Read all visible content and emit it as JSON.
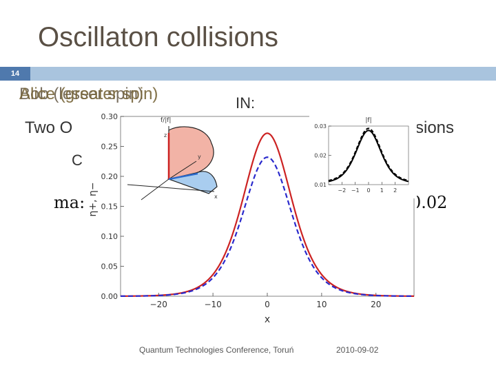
{
  "slide": {
    "title": "Oscillaton collisions",
    "number": "14",
    "bullet_overlap": [
      "Bob (lesser spin)",
      "Alice (greater spin)",
      "Alice (greater spin)"
    ],
    "text_in": "IN:",
    "text_left": "Two O",
    "text_right": "llisions",
    "text_c": "C",
    "text_max": "ma:",
    "text_value": "0.02",
    "footer_left": "Quantum Technologies Conference, Toruń",
    "footer_right": "2010-09-02"
  },
  "chart_data": [
    {
      "type": "line",
      "ylabel": "η+, η−",
      "xlabel": "x",
      "xlim": [
        -27,
        27
      ],
      "ylim": [
        0,
        0.3
      ],
      "xticks": [
        -20,
        -10,
        0,
        10,
        20
      ],
      "yticks": [
        0.0,
        0.05,
        0.1,
        0.15,
        0.2,
        0.25,
        0.3
      ],
      "ytick_labels": [
        "0.00",
        "0.05",
        "0.10",
        "0.15",
        "0.20",
        "0.25",
        "0.30"
      ],
      "series": [
        {
          "style": "solid",
          "color": "#cc2222",
          "peak": 0.272,
          "width": 6.0
        },
        {
          "style": "dashed",
          "color": "#2a2acc",
          "peak": 0.232,
          "width": 6.0
        }
      ]
    },
    {
      "type": "line",
      "ylabel": "|f|",
      "xlim": [
        -3,
        3
      ],
      "ylim": [
        0.01,
        0.03
      ],
      "xticks": [
        -2,
        -1,
        0,
        1,
        2
      ],
      "yticks": [
        0.01,
        0.02,
        0.03
      ],
      "ytick_labels": [
        "0.01",
        "0.02",
        "0.03"
      ],
      "series": [
        {
          "style": "solid",
          "color": "#000000",
          "peak": 0.0285,
          "base": 0.0105,
          "width": 1.25
        },
        {
          "style": "dashed",
          "color": "#000000",
          "peak": 0.0292,
          "base": 0.0108,
          "width": 1.25
        }
      ]
    }
  ],
  "diagram": {
    "label_top": "f/|f|",
    "axis_x": "x",
    "axis_y": "y",
    "axis_z": "z"
  }
}
